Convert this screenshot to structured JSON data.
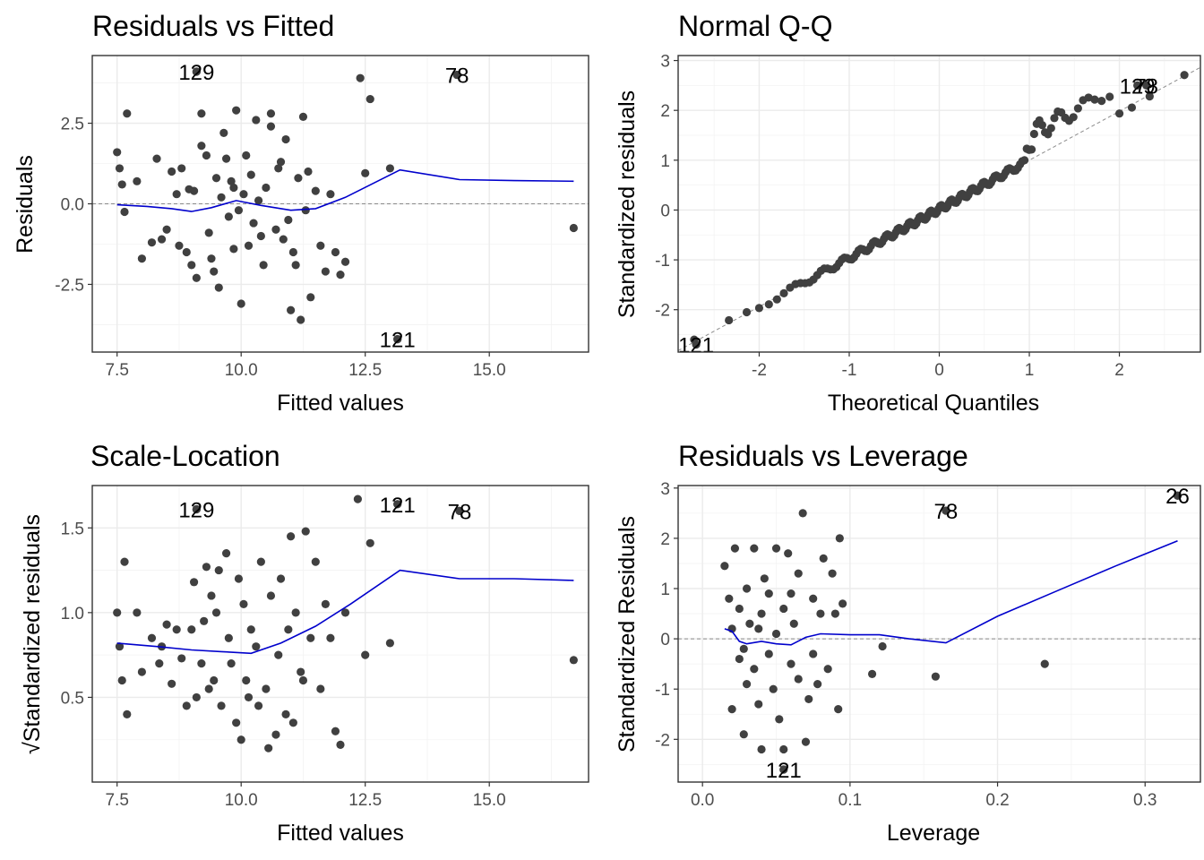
{
  "chart_data": [
    {
      "type": "scatter",
      "title": "Residuals vs Fitted",
      "xlabel": "Fitted values",
      "ylabel": "Residuals",
      "xlim": [
        7.0,
        17.0
      ],
      "ylim": [
        -4.6,
        4.6
      ],
      "x_ticks": [
        7.5,
        10.0,
        12.5,
        15.0
      ],
      "x_tick_labels": [
        "7.5",
        "10.0",
        "12.5",
        "15.0"
      ],
      "y_ticks": [
        -2.5,
        0.0,
        2.5
      ],
      "y_tick_labels": [
        "-2.5",
        "0.0",
        "2.5"
      ],
      "grid": true,
      "reference_line": {
        "y": 0,
        "style": "dashed"
      },
      "smooth_line": [
        [
          7.5,
          -0.03
        ],
        [
          8.1,
          -0.08
        ],
        [
          8.6,
          -0.15
        ],
        [
          9.0,
          -0.24
        ],
        [
          9.4,
          -0.12
        ],
        [
          9.9,
          0.1
        ],
        [
          10.4,
          -0.05
        ],
        [
          11.0,
          -0.2
        ],
        [
          11.5,
          -0.15
        ],
        [
          12.1,
          0.2
        ],
        [
          13.2,
          1.05
        ],
        [
          14.4,
          0.75
        ],
        [
          15.5,
          0.72
        ],
        [
          16.7,
          0.7
        ]
      ],
      "points": [
        [
          7.5,
          1.6
        ],
        [
          7.55,
          1.1
        ],
        [
          7.6,
          0.6
        ],
        [
          7.7,
          2.8
        ],
        [
          7.65,
          -0.25
        ],
        [
          7.9,
          0.7
        ],
        [
          8.0,
          -1.7
        ],
        [
          8.2,
          -1.2
        ],
        [
          8.4,
          -1.1
        ],
        [
          8.5,
          -0.8
        ],
        [
          8.6,
          1.0
        ],
        [
          8.7,
          0.3
        ],
        [
          8.8,
          1.1
        ],
        [
          8.9,
          -1.5
        ],
        [
          8.95,
          0.45
        ],
        [
          9.0,
          -1.9
        ],
        [
          9.05,
          0.4
        ],
        [
          9.1,
          -2.3
        ],
        [
          9.2,
          2.8
        ],
        [
          9.3,
          1.5
        ],
        [
          9.35,
          -0.9
        ],
        [
          9.4,
          -1.7
        ],
        [
          9.45,
          -2.1
        ],
        [
          9.5,
          0.8
        ],
        [
          9.55,
          -2.6
        ],
        [
          9.6,
          0.2
        ],
        [
          9.7,
          1.4
        ],
        [
          9.75,
          -0.4
        ],
        [
          9.8,
          0.7
        ],
        [
          9.85,
          -1.4
        ],
        [
          9.9,
          2.9
        ],
        [
          9.95,
          -0.2
        ],
        [
          10.0,
          -3.1
        ],
        [
          10.05,
          0.3
        ],
        [
          10.1,
          1.5
        ],
        [
          10.2,
          0.9
        ],
        [
          10.25,
          -0.6
        ],
        [
          10.3,
          2.6
        ],
        [
          10.4,
          -1.0
        ],
        [
          10.45,
          -1.9
        ],
        [
          10.5,
          0.5
        ],
        [
          10.6,
          2.8
        ],
        [
          10.7,
          -0.8
        ],
        [
          10.75,
          1.1
        ],
        [
          10.8,
          1.3
        ],
        [
          10.85,
          -1.1
        ],
        [
          10.9,
          2.0
        ],
        [
          10.95,
          -0.5
        ],
        [
          11.0,
          -3.3
        ],
        [
          11.05,
          -1.5
        ],
        [
          11.1,
          -1.9
        ],
        [
          11.2,
          -3.6
        ],
        [
          11.25,
          2.7
        ],
        [
          11.3,
          -0.2
        ],
        [
          11.35,
          1.0
        ],
        [
          11.4,
          -2.9
        ],
        [
          11.5,
          0.4
        ],
        [
          11.6,
          -1.3
        ],
        [
          11.7,
          -2.1
        ],
        [
          11.8,
          0.3
        ],
        [
          11.9,
          -1.5
        ],
        [
          12.0,
          -2.2
        ],
        [
          12.1,
          -1.8
        ],
        [
          12.4,
          3.9
        ],
        [
          12.5,
          0.95
        ],
        [
          12.6,
          3.25
        ],
        [
          13.0,
          1.1
        ],
        [
          13.15,
          -4.2
        ],
        [
          9.1,
          4.1
        ],
        [
          14.35,
          4.0
        ],
        [
          16.7,
          -0.75
        ],
        [
          10.6,
          2.4
        ],
        [
          8.3,
          1.4
        ],
        [
          9.2,
          1.8
        ],
        [
          9.65,
          2.2
        ],
        [
          10.35,
          0.1
        ],
        [
          11.15,
          0.8
        ],
        [
          9.85,
          0.5
        ],
        [
          8.75,
          -1.3
        ],
        [
          10.15,
          -1.3
        ]
      ],
      "labeled_points": [
        {
          "x": 9.1,
          "y": 4.1,
          "label": "129"
        },
        {
          "x": 14.35,
          "y": 4.0,
          "label": "78"
        },
        {
          "x": 13.15,
          "y": -4.2,
          "label": "121"
        }
      ]
    },
    {
      "type": "scatter",
      "title": "Normal Q-Q",
      "xlabel": "Theoretical Quantiles",
      "ylabel": "Standardized residuals",
      "xlim": [
        -2.9,
        2.9
      ],
      "ylim": [
        -2.85,
        3.1
      ],
      "x_ticks": [
        -2,
        -1,
        0,
        1,
        2
      ],
      "x_tick_labels": [
        "-2",
        "-1",
        "0",
        "1",
        "2"
      ],
      "y_ticks": [
        -2,
        -1,
        0,
        1,
        2,
        3
      ],
      "y_tick_labels": [
        "-2",
        "-1",
        "0",
        "1",
        "2",
        "3"
      ],
      "grid": true,
      "reference_line": {
        "slope": 0.98,
        "intercept": 0.02,
        "style": "dashed"
      },
      "qq_points": 154,
      "labeled_points": [
        {
          "x": 2.2,
          "y": 2.5,
          "label": "129"
        },
        {
          "x": 2.3,
          "y": 2.5,
          "label": "78"
        },
        {
          "x": -2.7,
          "y": -2.7,
          "label": "121"
        }
      ]
    },
    {
      "type": "scatter",
      "title": "Scale-Location",
      "xlabel": "Fitted values",
      "ylabel": "√Standardized residuals",
      "xlim": [
        7.0,
        17.0
      ],
      "ylim": [
        0.0,
        1.75
      ],
      "x_ticks": [
        7.5,
        10.0,
        12.5,
        15.0
      ],
      "x_tick_labels": [
        "7.5",
        "10.0",
        "12.5",
        "15.0"
      ],
      "y_ticks": [
        0.5,
        1.0,
        1.5
      ],
      "y_tick_labels": [
        "0.5",
        "1.0",
        "1.5"
      ],
      "grid": true,
      "smooth_line": [
        [
          7.5,
          0.82
        ],
        [
          8.3,
          0.8
        ],
        [
          9.0,
          0.78
        ],
        [
          9.6,
          0.77
        ],
        [
          10.2,
          0.76
        ],
        [
          10.8,
          0.82
        ],
        [
          11.5,
          0.92
        ],
        [
          12.2,
          1.05
        ],
        [
          13.2,
          1.25
        ],
        [
          14.4,
          1.2
        ],
        [
          15.5,
          1.2
        ],
        [
          16.7,
          1.19
        ]
      ],
      "points": [
        [
          7.5,
          1.0
        ],
        [
          7.55,
          0.8
        ],
        [
          7.6,
          0.6
        ],
        [
          7.65,
          1.3
        ],
        [
          7.7,
          0.4
        ],
        [
          7.9,
          1.0
        ],
        [
          8.0,
          0.65
        ],
        [
          8.2,
          0.85
        ],
        [
          8.4,
          0.8
        ],
        [
          8.5,
          0.93
        ],
        [
          8.6,
          0.58
        ],
        [
          8.7,
          0.9
        ],
        [
          8.8,
          0.73
        ],
        [
          8.9,
          0.45
        ],
        [
          9.0,
          0.9
        ],
        [
          9.05,
          1.18
        ],
        [
          9.1,
          0.5
        ],
        [
          9.2,
          0.7
        ],
        [
          9.3,
          1.27
        ],
        [
          9.35,
          0.55
        ],
        [
          9.4,
          1.1
        ],
        [
          9.45,
          0.6
        ],
        [
          9.5,
          1.0
        ],
        [
          9.6,
          0.45
        ],
        [
          9.7,
          1.35
        ],
        [
          9.75,
          0.85
        ],
        [
          9.8,
          0.7
        ],
        [
          9.9,
          0.35
        ],
        [
          9.95,
          1.2
        ],
        [
          10.0,
          0.25
        ],
        [
          10.05,
          1.05
        ],
        [
          10.1,
          0.6
        ],
        [
          10.2,
          0.9
        ],
        [
          10.3,
          0.8
        ],
        [
          10.35,
          0.45
        ],
        [
          10.4,
          1.3
        ],
        [
          10.5,
          0.55
        ],
        [
          10.6,
          1.1
        ],
        [
          10.7,
          0.28
        ],
        [
          10.75,
          0.75
        ],
        [
          10.8,
          1.2
        ],
        [
          10.9,
          0.4
        ],
        [
          10.95,
          0.9
        ],
        [
          11.0,
          1.45
        ],
        [
          11.05,
          0.35
        ],
        [
          11.1,
          1.0
        ],
        [
          11.2,
          0.65
        ],
        [
          11.3,
          1.48
        ],
        [
          11.4,
          0.85
        ],
        [
          11.5,
          1.3
        ],
        [
          11.6,
          0.55
        ],
        [
          11.7,
          1.05
        ],
        [
          11.8,
          0.85
        ],
        [
          11.9,
          0.3
        ],
        [
          12.0,
          0.22
        ],
        [
          12.1,
          1.0
        ],
        [
          12.35,
          1.67
        ],
        [
          12.5,
          0.75
        ],
        [
          12.6,
          1.41
        ],
        [
          13.0,
          0.82
        ],
        [
          13.15,
          1.64
        ],
        [
          9.1,
          1.61
        ],
        [
          14.4,
          1.6
        ],
        [
          16.7,
          0.72
        ],
        [
          9.25,
          0.95
        ],
        [
          10.15,
          0.5
        ],
        [
          8.35,
          0.7
        ],
        [
          11.25,
          0.6
        ],
        [
          10.55,
          0.2
        ],
        [
          9.55,
          1.25
        ]
      ],
      "labeled_points": [
        {
          "x": 9.1,
          "y": 1.61,
          "label": "129"
        },
        {
          "x": 13.15,
          "y": 1.64,
          "label": "121"
        },
        {
          "x": 14.4,
          "y": 1.6,
          "label": "78"
        }
      ]
    },
    {
      "type": "scatter",
      "title": "Residuals vs Leverage",
      "xlabel": "Leverage",
      "ylabel": "Standardized Residuals",
      "xlim": [
        -0.0165,
        0.3375
      ],
      "ylim": [
        -2.85,
        3.05
      ],
      "x_ticks": [
        0.0,
        0.1,
        0.2,
        0.3
      ],
      "x_tick_labels": [
        "0.0",
        "0.1",
        "0.2",
        "0.3"
      ],
      "y_ticks": [
        -2,
        -1,
        0,
        1,
        2,
        3
      ],
      "y_tick_labels": [
        "-2",
        "-1",
        "0",
        "1",
        "2",
        "3"
      ],
      "grid": true,
      "reference_line": {
        "y": 0,
        "style": "dashed"
      },
      "smooth_line": [
        [
          0.015,
          0.2
        ],
        [
          0.02,
          0.15
        ],
        [
          0.025,
          -0.05
        ],
        [
          0.03,
          -0.1
        ],
        [
          0.04,
          -0.05
        ],
        [
          0.05,
          -0.1
        ],
        [
          0.06,
          -0.12
        ],
        [
          0.07,
          0.03
        ],
        [
          0.08,
          0.1
        ],
        [
          0.1,
          0.08
        ],
        [
          0.12,
          0.08
        ],
        [
          0.14,
          0.0
        ],
        [
          0.165,
          -0.08
        ],
        [
          0.2,
          0.45
        ],
        [
          0.24,
          0.95
        ],
        [
          0.28,
          1.45
        ],
        [
          0.322,
          1.95
        ]
      ],
      "points": [
        [
          0.015,
          1.45
        ],
        [
          0.018,
          0.8
        ],
        [
          0.02,
          -1.4
        ],
        [
          0.02,
          0.2
        ],
        [
          0.022,
          1.8
        ],
        [
          0.025,
          -0.4
        ],
        [
          0.025,
          0.6
        ],
        [
          0.028,
          -1.9
        ],
        [
          0.03,
          1.0
        ],
        [
          0.03,
          -0.9
        ],
        [
          0.032,
          0.3
        ],
        [
          0.035,
          1.8
        ],
        [
          0.035,
          -0.6
        ],
        [
          0.038,
          -1.3
        ],
        [
          0.04,
          0.5
        ],
        [
          0.04,
          -2.2
        ],
        [
          0.042,
          1.2
        ],
        [
          0.045,
          -0.3
        ],
        [
          0.045,
          0.9
        ],
        [
          0.048,
          -1.0
        ],
        [
          0.05,
          1.8
        ],
        [
          0.05,
          0.1
        ],
        [
          0.052,
          -1.6
        ],
        [
          0.055,
          -2.2
        ],
        [
          0.055,
          0.6
        ],
        [
          0.058,
          1.7
        ],
        [
          0.06,
          -0.5
        ],
        [
          0.062,
          0.3
        ],
        [
          0.065,
          -0.8
        ],
        [
          0.065,
          1.3
        ],
        [
          0.068,
          2.5
        ],
        [
          0.07,
          -2.05
        ],
        [
          0.072,
          -1.2
        ],
        [
          0.075,
          0.8
        ],
        [
          0.078,
          -0.9
        ],
        [
          0.08,
          0.5
        ],
        [
          0.082,
          1.6
        ],
        [
          0.085,
          -0.6
        ],
        [
          0.088,
          1.3
        ],
        [
          0.09,
          0.5
        ],
        [
          0.092,
          -1.4
        ],
        [
          0.093,
          2.0
        ],
        [
          0.095,
          0.7
        ],
        [
          0.115,
          -0.7
        ],
        [
          0.122,
          -0.15
        ],
        [
          0.158,
          -0.75
        ],
        [
          0.165,
          2.55
        ],
        [
          0.232,
          -0.5
        ],
        [
          0.322,
          2.85
        ],
        [
          0.055,
          -2.6
        ],
        [
          0.038,
          0.2
        ],
        [
          0.028,
          -0.2
        ],
        [
          0.06,
          0.9
        ],
        [
          0.075,
          -0.3
        ]
      ],
      "labeled_points": [
        {
          "x": 0.165,
          "y": 2.55,
          "label": "78"
        },
        {
          "x": 0.322,
          "y": 2.85,
          "label": "26"
        },
        {
          "x": 0.055,
          "y": -2.6,
          "label": "121"
        }
      ]
    }
  ]
}
